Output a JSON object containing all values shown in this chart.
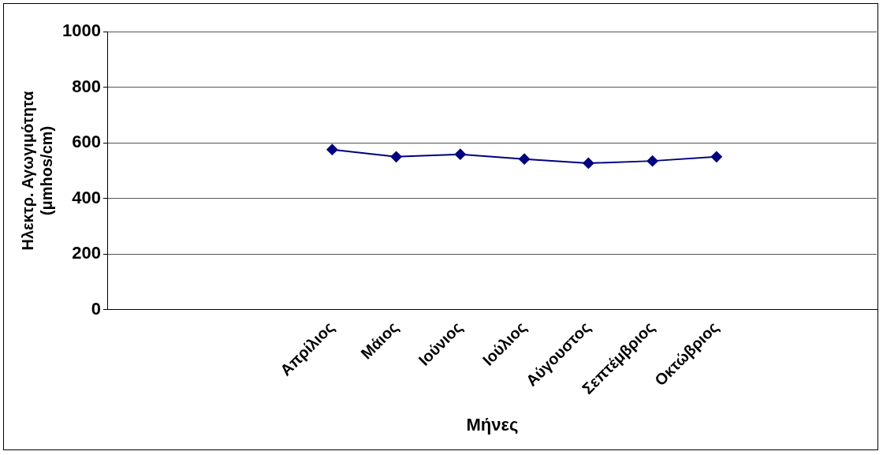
{
  "chart_data": {
    "type": "line",
    "xlabel": "Μήνες",
    "ylabel": "Ηλεκτρ. Αγωγιμότητα\n(μmhos/cm)",
    "categories": [
      null,
      null,
      null,
      "Απρίλιος",
      "Μάιος",
      "Ιούνιος",
      "Ιούλιος",
      "Αύγουστος",
      "Σεπτέμβριος",
      "Οκτώβριος",
      null,
      null
    ],
    "series": [
      {
        "color": "#000080",
        "values": [
          null,
          null,
          null,
          576,
          550,
          559,
          542,
          527,
          535,
          550,
          null,
          null
        ]
      }
    ],
    "ylim": [
      0,
      1000
    ],
    "yticks": [
      0,
      200,
      400,
      600,
      800,
      1000
    ],
    "grid": "y",
    "legend": false,
    "marker": "diamond",
    "line_style": "solid"
  }
}
